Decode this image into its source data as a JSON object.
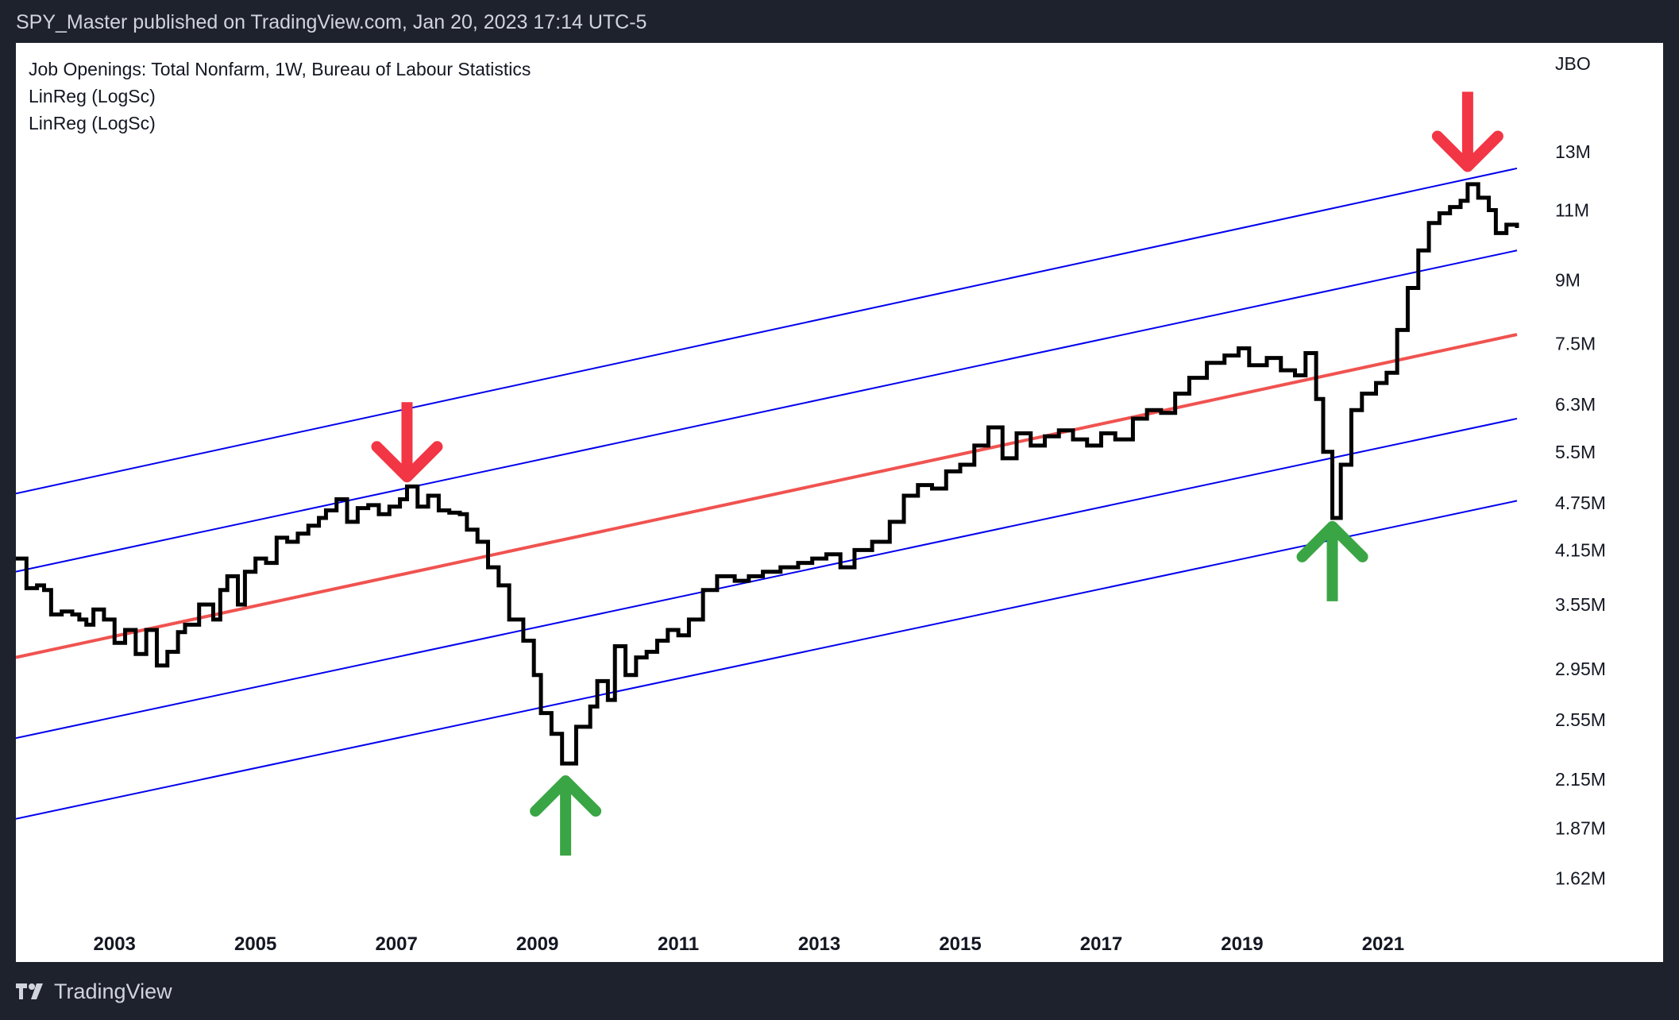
{
  "header": {
    "published_text": "SPY_Master published on TradingView.com, Jan 20, 2023 17:14 UTC-5"
  },
  "footer": {
    "brand_text": "TradingView",
    "logo_icon": "tradingview-logo-icon"
  },
  "legend": {
    "series_title": "Job Openings: Total Nonfarm, 1W, Bureau of Labour Statistics",
    "indicator_1": "LinReg (LogSc)",
    "indicator_2": "LinReg (LogSc)"
  },
  "colors": {
    "background": "#1e222d",
    "panel": "#ffffff",
    "price_line": "#000000",
    "regression_center": "#f05350",
    "regression_bands": "#0000ee",
    "arrow_down": "#f23645",
    "arrow_up": "#3aa545"
  },
  "chart_data": {
    "type": "line",
    "scale": "log",
    "step": true,
    "y_unit": "JBO",
    "y_ticks": [
      {
        "value": 13000000,
        "label": "13M"
      },
      {
        "value": 11000000,
        "label": "11M"
      },
      {
        "value": 9000000,
        "label": "9M"
      },
      {
        "value": 7500000,
        "label": "7.5M"
      },
      {
        "value": 6300000,
        "label": "6.3M"
      },
      {
        "value": 5500000,
        "label": "5.5M"
      },
      {
        "value": 4750000,
        "label": "4.75M"
      },
      {
        "value": 4150000,
        "label": "4.15M"
      },
      {
        "value": 3550000,
        "label": "3.55M"
      },
      {
        "value": 2950000,
        "label": "2.95M"
      },
      {
        "value": 2550000,
        "label": "2.55M"
      },
      {
        "value": 2150000,
        "label": "2.15M"
      },
      {
        "value": 1870000,
        "label": "1.87M"
      },
      {
        "value": 1620000,
        "label": "1.62M"
      }
    ],
    "x_ticks": [
      "2003",
      "2005",
      "2007",
      "2009",
      "2011",
      "2013",
      "2015",
      "2017",
      "2019",
      "2021"
    ],
    "x_range": [
      2001.6,
      2022.9
    ],
    "y_range": [
      1450000,
      15500000
    ],
    "series": [
      {
        "name": "Job Openings: Total Nonfarm",
        "points": [
          [
            2001.6,
            4.05
          ],
          [
            2001.75,
            3.72
          ],
          [
            2001.9,
            3.75
          ],
          [
            2002.0,
            3.7
          ],
          [
            2002.1,
            3.45
          ],
          [
            2002.25,
            3.48
          ],
          [
            2002.4,
            3.45
          ],
          [
            2002.5,
            3.4
          ],
          [
            2002.6,
            3.35
          ],
          [
            2002.7,
            3.5
          ],
          [
            2002.85,
            3.4
          ],
          [
            2003.0,
            3.18
          ],
          [
            2003.15,
            3.3
          ],
          [
            2003.3,
            3.08
          ],
          [
            2003.45,
            3.3
          ],
          [
            2003.6,
            2.98
          ],
          [
            2003.75,
            3.1
          ],
          [
            2003.9,
            3.28
          ],
          [
            2004.0,
            3.35
          ],
          [
            2004.2,
            3.55
          ],
          [
            2004.4,
            3.4
          ],
          [
            2004.5,
            3.7
          ],
          [
            2004.6,
            3.85
          ],
          [
            2004.75,
            3.55
          ],
          [
            2004.85,
            3.9
          ],
          [
            2005.0,
            4.05
          ],
          [
            2005.15,
            4.0
          ],
          [
            2005.3,
            4.3
          ],
          [
            2005.45,
            4.25
          ],
          [
            2005.6,
            4.35
          ],
          [
            2005.75,
            4.45
          ],
          [
            2005.9,
            4.55
          ],
          [
            2006.0,
            4.65
          ],
          [
            2006.15,
            4.8
          ],
          [
            2006.3,
            4.5
          ],
          [
            2006.45,
            4.68
          ],
          [
            2006.6,
            4.72
          ],
          [
            2006.75,
            4.6
          ],
          [
            2006.9,
            4.7
          ],
          [
            2007.05,
            4.8
          ],
          [
            2007.15,
            4.98
          ],
          [
            2007.3,
            4.7
          ],
          [
            2007.45,
            4.85
          ],
          [
            2007.6,
            4.65
          ],
          [
            2007.75,
            4.62
          ],
          [
            2007.9,
            4.6
          ],
          [
            2008.0,
            4.4
          ],
          [
            2008.15,
            4.25
          ],
          [
            2008.3,
            3.95
          ],
          [
            2008.45,
            3.75
          ],
          [
            2008.6,
            3.4
          ],
          [
            2008.8,
            3.2
          ],
          [
            2008.95,
            2.9
          ],
          [
            2009.05,
            2.6
          ],
          [
            2009.2,
            2.45
          ],
          [
            2009.35,
            2.25
          ],
          [
            2009.55,
            2.5
          ],
          [
            2009.75,
            2.65
          ],
          [
            2009.85,
            2.85
          ],
          [
            2010.0,
            2.7
          ],
          [
            2010.1,
            3.15
          ],
          [
            2010.25,
            2.9
          ],
          [
            2010.4,
            3.05
          ],
          [
            2010.55,
            3.1
          ],
          [
            2010.7,
            3.2
          ],
          [
            2010.85,
            3.3
          ],
          [
            2011.0,
            3.25
          ],
          [
            2011.15,
            3.4
          ],
          [
            2011.35,
            3.7
          ],
          [
            2011.55,
            3.85
          ],
          [
            2011.8,
            3.8
          ],
          [
            2012.0,
            3.85
          ],
          [
            2012.2,
            3.9
          ],
          [
            2012.45,
            3.95
          ],
          [
            2012.7,
            4.0
          ],
          [
            2012.9,
            4.05
          ],
          [
            2013.1,
            4.1
          ],
          [
            2013.3,
            3.95
          ],
          [
            2013.5,
            4.15
          ],
          [
            2013.75,
            4.25
          ],
          [
            2014.0,
            4.5
          ],
          [
            2014.2,
            4.85
          ],
          [
            2014.4,
            5.0
          ],
          [
            2014.6,
            4.95
          ],
          [
            2014.8,
            5.2
          ],
          [
            2015.0,
            5.3
          ],
          [
            2015.2,
            5.6
          ],
          [
            2015.4,
            5.9
          ],
          [
            2015.6,
            5.4
          ],
          [
            2015.8,
            5.8
          ],
          [
            2016.0,
            5.6
          ],
          [
            2016.2,
            5.75
          ],
          [
            2016.4,
            5.85
          ],
          [
            2016.6,
            5.7
          ],
          [
            2016.8,
            5.6
          ],
          [
            2017.0,
            5.8
          ],
          [
            2017.2,
            5.7
          ],
          [
            2017.45,
            6.05
          ],
          [
            2017.65,
            6.2
          ],
          [
            2017.85,
            6.15
          ],
          [
            2018.05,
            6.5
          ],
          [
            2018.25,
            6.8
          ],
          [
            2018.5,
            7.1
          ],
          [
            2018.75,
            7.25
          ],
          [
            2018.95,
            7.4
          ],
          [
            2019.1,
            7.05
          ],
          [
            2019.35,
            7.2
          ],
          [
            2019.55,
            6.95
          ],
          [
            2019.75,
            6.85
          ],
          [
            2019.9,
            7.3
          ],
          [
            2020.05,
            6.4
          ],
          [
            2020.15,
            5.5
          ],
          [
            2020.28,
            4.55
          ],
          [
            2020.4,
            5.3
          ],
          [
            2020.55,
            6.2
          ],
          [
            2020.7,
            6.5
          ],
          [
            2020.9,
            6.7
          ],
          [
            2021.05,
            6.9
          ],
          [
            2021.2,
            7.8
          ],
          [
            2021.35,
            8.8
          ],
          [
            2021.5,
            9.8
          ],
          [
            2021.65,
            10.6
          ],
          [
            2021.8,
            10.9
          ],
          [
            2021.95,
            11.1
          ],
          [
            2022.1,
            11.3
          ],
          [
            2022.2,
            11.85
          ],
          [
            2022.35,
            11.4
          ],
          [
            2022.5,
            11.0
          ],
          [
            2022.6,
            10.3
          ],
          [
            2022.75,
            10.55
          ],
          [
            2022.9,
            10.45
          ]
        ]
      }
    ],
    "regression": {
      "anchor_x": [
        2001.6,
        2022.9
      ],
      "center": [
        3.05,
        7.7
      ],
      "bands": [
        {
          "role": "upper-2",
          "values": [
            4.88,
            12.4
          ]
        },
        {
          "role": "upper-1",
          "values": [
            3.9,
            9.8
          ]
        },
        {
          "role": "lower-1",
          "values": [
            2.42,
            6.05
          ]
        },
        {
          "role": "lower-2",
          "values": [
            1.92,
            4.78
          ]
        }
      ]
    },
    "annotations": [
      {
        "type": "arrow-down",
        "x": 2007.15,
        "y": 5.05
      },
      {
        "type": "arrow-up",
        "x": 2009.4,
        "y": 2.17
      },
      {
        "type": "arrow-up",
        "x": 2020.28,
        "y": 4.5
      },
      {
        "type": "arrow-down",
        "x": 2022.2,
        "y": 12.3
      }
    ]
  }
}
